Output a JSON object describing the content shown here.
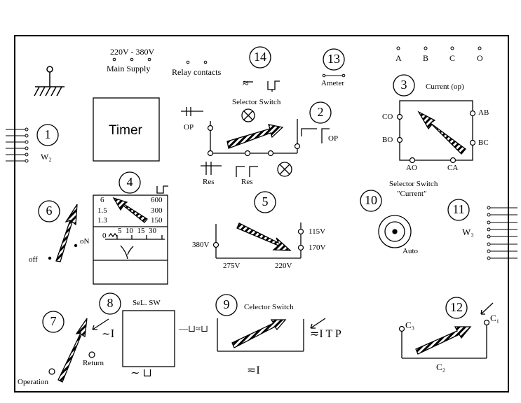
{
  "supply": {
    "voltage": "220V - 380V",
    "label": "Main Supply"
  },
  "relay": {
    "label": "Relay contacts"
  },
  "timer": {
    "label": "Timer"
  },
  "numbers": {
    "n1": "1",
    "n2": "2",
    "n3": "3",
    "n4": "4",
    "n5": "5",
    "n6": "6",
    "n7": "7",
    "n8": "8",
    "n9": "9",
    "n10": "10",
    "n11": "11",
    "n12": "12",
    "n13": "13",
    "n14": "14"
  },
  "w2": "W₂",
  "w3": "W₃",
  "terminals_top": [
    "A",
    "B",
    "C",
    "O"
  ],
  "ammeter": "Ameter",
  "selector_switch_14": "Selector  Switch",
  "sw14_ac": "≈",
  "op1": "OP",
  "op2": "OP",
  "res1": "Res",
  "res2": "Res",
  "current_op": "Current (op)",
  "cs_labels": {
    "co": "CO",
    "bo": "BO",
    "ab": "AB",
    "bc": "BC",
    "ao": "AO",
    "ca": "CA"
  },
  "selector_current": {
    "line1": "Selector Switch",
    "line2": "\"Current\""
  },
  "meter4": {
    "scale_left": [
      "6",
      "1.5",
      "1.3"
    ],
    "scale_right": [
      "600",
      "300",
      "150"
    ],
    "bottom_scale": "5  10  15  30",
    "zero": "0"
  },
  "sw6": {
    "on": "oN",
    "off": "off"
  },
  "volt5": {
    "v380": "380V",
    "v275": "275V",
    "v220": "220V",
    "v115": "115V",
    "v170": "170V"
  },
  "auto": "Auto",
  "sw7": {
    "operation": "Operation",
    "return": "Return",
    "tilde_i": "I"
  },
  "sel_sw8": "SeL. SW",
  "sel_sw8_right": "—⊔≈⊔",
  "sel_sw8_bottom": "⊔",
  "sw9": {
    "title": "Celector Switch",
    "itp": "I T P",
    "bottom": "I"
  },
  "sw12": {
    "c1": "C₁",
    "c2": "C₂",
    "c3": "C₃"
  }
}
